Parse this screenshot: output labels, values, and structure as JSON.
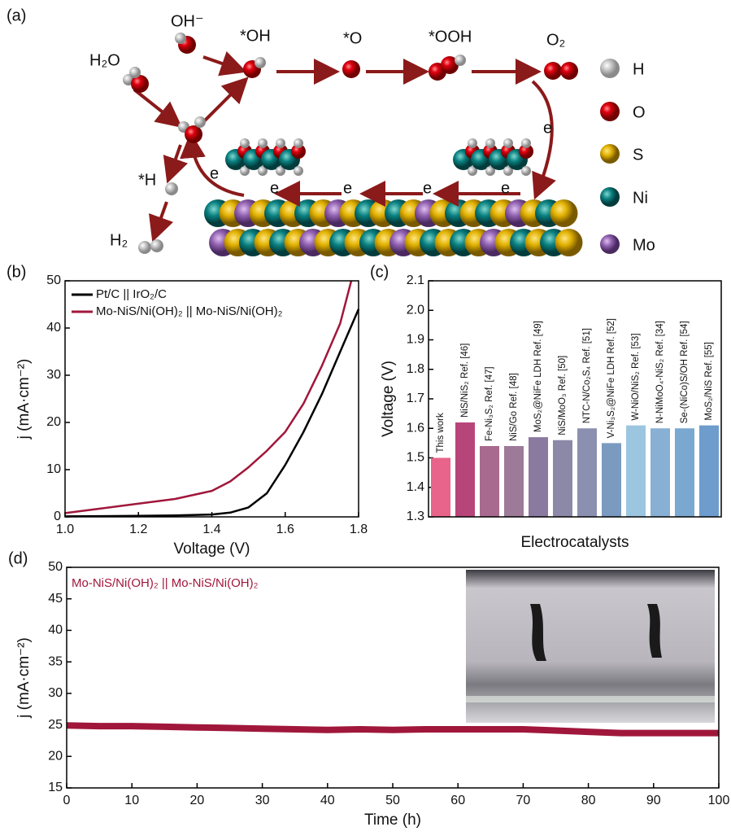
{
  "diagram": {
    "panel_label": "(a)",
    "species": [
      "OH⁻",
      "*OH",
      "*O",
      "*OOH",
      "O₂",
      "H₂O",
      "*H",
      "H₂"
    ],
    "electron": "e",
    "legend": [
      "H",
      "O",
      "S",
      "Ni",
      "Mo"
    ]
  },
  "chart_data": [
    {
      "type": "line",
      "panel_label": "(b)",
      "xlabel": "Voltage (V)",
      "ylabel": "j (mA·cm⁻²)",
      "xlim": [
        1.0,
        1.8
      ],
      "xticks": [
        {
          "value": 1.0,
          "label": "1.0"
        },
        1.2,
        1.4,
        1.6,
        {
          "value": 1.8,
          "label": "1.8"
        }
      ],
      "ylim": [
        0,
        50
      ],
      "yticks": [
        0,
        10,
        20,
        30,
        40,
        50
      ],
      "legend": "upper left",
      "series": [
        {
          "name": "Pt/C || IrO₂/C",
          "color": "#000000",
          "x": [
            1.0,
            1.1,
            1.2,
            1.3,
            1.4,
            1.45,
            1.5,
            1.55,
            1.6,
            1.65,
            1.7,
            1.75,
            1.8
          ],
          "values": [
            0.1,
            0.15,
            0.2,
            0.3,
            0.5,
            0.9,
            2,
            5,
            11,
            18,
            26,
            35,
            44
          ]
        },
        {
          "name": "Mo-NiS/Ni(OH)₂ || Mo-NiS/Ni(OH)₂",
          "color": "#a0173b",
          "x": [
            1.0,
            1.1,
            1.2,
            1.3,
            1.4,
            1.45,
            1.5,
            1.55,
            1.6,
            1.65,
            1.7,
            1.75,
            1.78
          ],
          "values": [
            0.8,
            1.8,
            2.8,
            3.8,
            5.5,
            7.5,
            10.5,
            14,
            18,
            24,
            32,
            41,
            50
          ]
        }
      ]
    },
    {
      "type": "bar",
      "panel_label": "(c)",
      "xlabel": "Electrocatalysts",
      "ylabel": "Voltage (V)",
      "ylim": [
        1.3,
        2.1
      ],
      "yticks": [
        1.3,
        1.4,
        1.5,
        1.6,
        1.7,
        1.8,
        1.9,
        {
          "value": 2.0,
          "label": "2.0"
        },
        2.1
      ],
      "categories": [
        "This work",
        "NiS/NiS₂ Ref. [46]",
        "Fe-Ni₃S₂ Ref. [47]",
        "NiS/Go Ref. [48]",
        "MoS₂@NiFe LDH Ref. [49]",
        "NiS/MoO₃ Ref. [50]",
        "NTC-N/Co₂S₄ Ref. [51]",
        "V-Ni₃S₂@NiFe LDH Ref. [52]",
        "W-NiO/NiS₂ Ref. [53]",
        "N-NiMoO₄-NiS₂ Ref. [34]",
        "Se-(NiCo)S/OH Ref. [54]",
        "MoS₂/NiS Ref. [55]"
      ],
      "values": [
        1.5,
        1.62,
        1.54,
        1.54,
        1.57,
        1.56,
        1.6,
        1.55,
        1.61,
        1.6,
        1.6,
        1.61
      ],
      "colors": [
        "#e8648a",
        "#b8457a",
        "#a86a8e",
        "#9c7a98",
        "#8a7aa0",
        "#8c88a8",
        "#8c90b0",
        "#7a9ac0",
        "#9cc6e0",
        "#88b0d4",
        "#7aa8d0",
        "#6e9ccc"
      ]
    },
    {
      "type": "line",
      "panel_label": "(d)",
      "xlabel": "Time (h)",
      "ylabel": "j (mA·cm⁻²)",
      "xlim": [
        0,
        100
      ],
      "xticks": [
        0,
        10,
        20,
        30,
        40,
        50,
        60,
        70,
        80,
        90,
        100
      ],
      "ylim": [
        15,
        50
      ],
      "yticks": [
        15,
        20,
        25,
        30,
        35,
        40,
        45,
        50
      ],
      "x": [
        0,
        5,
        10,
        15,
        20,
        25,
        30,
        35,
        40,
        45,
        50,
        55,
        60,
        65,
        70,
        75,
        80,
        85,
        90,
        95,
        100
      ],
      "series": [
        {
          "name": "Mo-NiS/Ni(OH)₂ || Mo-NiS/Ni(OH)₂",
          "color": "#a0173b",
          "values": [
            24.9,
            24.8,
            24.8,
            24.7,
            24.6,
            24.5,
            24.4,
            24.3,
            24.2,
            24.3,
            24.2,
            24.3,
            24.3,
            24.3,
            24.3,
            24.1,
            23.9,
            23.7,
            23.7,
            23.7,
            23.7
          ]
        }
      ]
    }
  ]
}
